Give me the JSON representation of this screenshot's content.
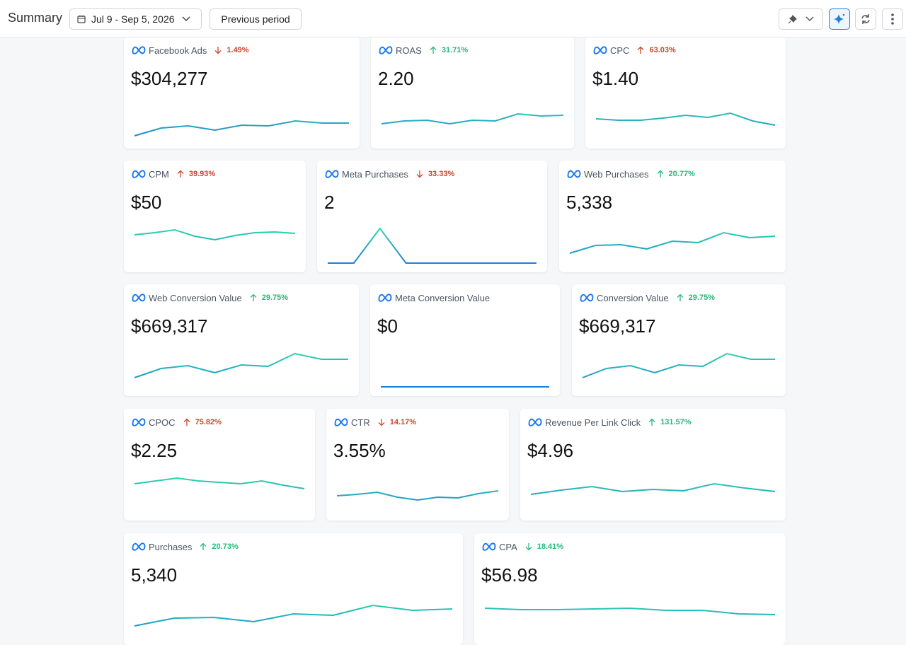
{
  "header": {
    "title": "Summary",
    "date_range": "Jul 9 - Sep 5, 2026",
    "compare": "Previous period"
  },
  "spark_colors": [
    "#2ee3a3",
    "#1e7fd8"
  ],
  "rows": [
    {
      "cards": [
        {
          "title": "Facebook Ads",
          "change": "1.49%",
          "direction": "down",
          "change_color": "#d0432b",
          "value": "$304,277",
          "sparkline": [
            19,
            30,
            33,
            27,
            34,
            33,
            40,
            37,
            37
          ]
        },
        {
          "title": "ROAS",
          "change": "31.71%",
          "direction": "up",
          "change_color": "#27b87a",
          "value": "2.20",
          "sparkline": [
            36,
            40,
            41,
            36,
            41,
            40,
            50,
            47,
            48
          ]
        },
        {
          "title": "CPC",
          "change": "63.03%",
          "direction": "up",
          "change_color": "#d0432b",
          "value": "$1.40",
          "sparkline": [
            43,
            41,
            41,
            44,
            48,
            45,
            51,
            40,
            34
          ]
        }
      ]
    },
    {
      "cards": [
        {
          "title": "CPM",
          "change": "39.93%",
          "direction": "up",
          "change_color": "#d0432b",
          "value": "$50",
          "sparkline": [
            54,
            57,
            61,
            52,
            47,
            53,
            57,
            58,
            56
          ]
        },
        {
          "title": "Meta Purchases",
          "change": "33.33%",
          "direction": "down",
          "change_color": "#d0432b",
          "value": "2",
          "sparkline": [
            14,
            14,
            63,
            14,
            14,
            14,
            14,
            14,
            14
          ]
        },
        {
          "title": "Web Purchases",
          "change": "20.77%",
          "direction": "up",
          "change_color": "#27b87a",
          "value": "5,338",
          "sparkline": [
            28,
            39,
            40,
            34,
            45,
            43,
            57,
            50,
            52
          ]
        }
      ]
    },
    {
      "cards": [
        {
          "title": "Web Conversion Value",
          "change": "29.75%",
          "direction": "up",
          "change_color": "#27b87a",
          "value": "$669,317",
          "sparkline": [
            27,
            40,
            44,
            34,
            45,
            43,
            61,
            53,
            53
          ]
        },
        {
          "title": "Meta Conversion Value",
          "value": "$0",
          "sparkline": [
            14,
            14,
            14,
            14,
            14,
            14,
            14,
            14,
            14
          ]
        },
        {
          "title": "Conversion Value",
          "change": "29.75%",
          "direction": "up",
          "change_color": "#27b87a",
          "value": "$669,317",
          "sparkline": [
            27,
            40,
            44,
            34,
            45,
            43,
            61,
            53,
            53
          ]
        }
      ]
    },
    {
      "cards": [
        {
          "title": "CPOC",
          "change": "75.82%",
          "direction": "up",
          "change_color": "#d0432b",
          "value": "$2.25",
          "sparkline": [
            53,
            57,
            61,
            57,
            55,
            53,
            57,
            51,
            46
          ]
        },
        {
          "title": "CTR",
          "change": "14.17%",
          "direction": "down",
          "change_color": "#d0432b",
          "value": "3.55%",
          "sparkline": [
            36,
            38,
            41,
            34,
            30,
            34,
            33,
            39,
            43
          ]
        },
        {
          "title": "Revenue Per Link Click",
          "change": "131.57%",
          "direction": "up",
          "change_color": "#27b87a",
          "value": "$4.96",
          "sparkline": [
            38,
            44,
            49,
            42,
            45,
            43,
            53,
            47,
            42
          ]
        }
      ]
    },
    {
      "cards": [
        {
          "title": "Purchases",
          "change": "20.73%",
          "direction": "up",
          "change_color": "#27b87a",
          "value": "5,340",
          "sparkline": [
            28,
            39,
            40,
            34,
            45,
            43,
            57,
            50,
            52
          ]
        },
        {
          "title": "CPA",
          "change": "18.41%",
          "direction": "down",
          "change_color": "#27b87a",
          "value": "$56.98",
          "sparkline": [
            53,
            51,
            51,
            52,
            53,
            50,
            50,
            45,
            44
          ]
        }
      ]
    }
  ]
}
